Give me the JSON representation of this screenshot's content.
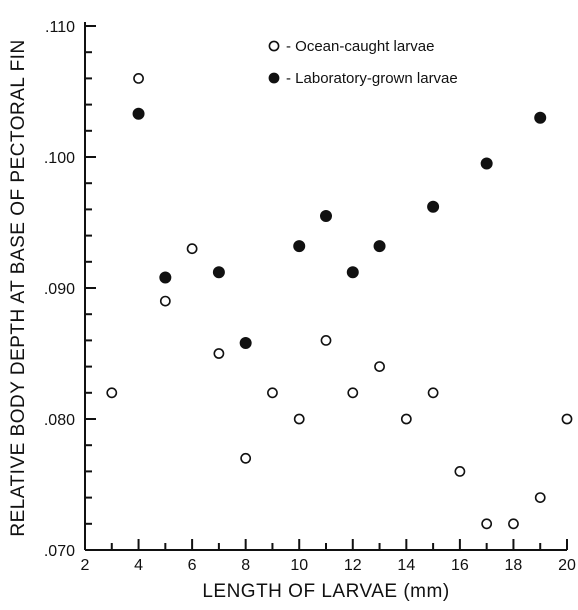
{
  "chart_data": {
    "type": "scatter",
    "xlabel": "LENGTH OF LARVAE (mm)",
    "ylabel": "RELATIVE BODY DEPTH AT BASE OF PECTORAL FIN",
    "xlim": [
      2,
      20
    ],
    "ylim": [
      0.07,
      0.11
    ],
    "x_ticks": [
      "2",
      "4",
      "6",
      "8",
      "10",
      "12",
      "14",
      "16",
      "18",
      "20"
    ],
    "y_ticks": [
      ".070",
      ".080",
      ".090",
      ".100",
      ".110"
    ],
    "legend_position": "top-right",
    "grid": false,
    "series": [
      {
        "name": "Ocean-caught larvae",
        "marker": "open-circle",
        "color": "#111111",
        "points": [
          {
            "x": 3,
            "y": 0.082
          },
          {
            "x": 4,
            "y": 0.106
          },
          {
            "x": 5,
            "y": 0.089
          },
          {
            "x": 6,
            "y": 0.093
          },
          {
            "x": 7,
            "y": 0.085
          },
          {
            "x": 8,
            "y": 0.077
          },
          {
            "x": 9,
            "y": 0.082
          },
          {
            "x": 10,
            "y": 0.08
          },
          {
            "x": 11,
            "y": 0.086
          },
          {
            "x": 12,
            "y": 0.082
          },
          {
            "x": 13,
            "y": 0.084
          },
          {
            "x": 14,
            "y": 0.08
          },
          {
            "x": 15,
            "y": 0.082
          },
          {
            "x": 16,
            "y": 0.076
          },
          {
            "x": 17,
            "y": 0.072
          },
          {
            "x": 18,
            "y": 0.072
          },
          {
            "x": 19,
            "y": 0.074
          },
          {
            "x": 20,
            "y": 0.08
          }
        ]
      },
      {
        "name": "Laboratory-grown larvae",
        "marker": "filled-circle",
        "color": "#111111",
        "points": [
          {
            "x": 4,
            "y": 0.1033
          },
          {
            "x": 5,
            "y": 0.0908
          },
          {
            "x": 7,
            "y": 0.0912
          },
          {
            "x": 8,
            "y": 0.0858
          },
          {
            "x": 10,
            "y": 0.0932
          },
          {
            "x": 11,
            "y": 0.0955
          },
          {
            "x": 12,
            "y": 0.0912
          },
          {
            "x": 13,
            "y": 0.0932
          },
          {
            "x": 15,
            "y": 0.0962
          },
          {
            "x": 17,
            "y": 0.0995
          },
          {
            "x": 19,
            "y": 0.103
          }
        ]
      }
    ]
  }
}
